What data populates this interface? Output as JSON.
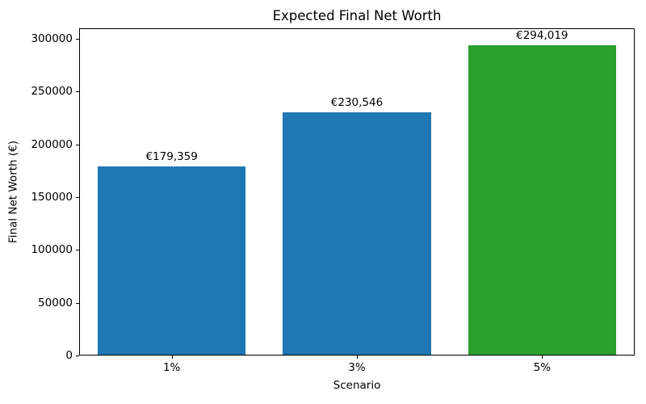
{
  "chart_data": {
    "type": "bar",
    "title": "Expected Final Net Worth",
    "xlabel": "Scenario",
    "ylabel": "Final Net Worth (€)",
    "categories": [
      "1%",
      "3%",
      "5%"
    ],
    "values": [
      179359,
      230546,
      294019
    ],
    "bar_labels": [
      "€179,359",
      "€230,546",
      "€294,019"
    ],
    "bar_colors": [
      "#1f77b4",
      "#1f77b4",
      "#2ca02c"
    ],
    "ylim": [
      0,
      310000
    ],
    "yticks": [
      0,
      50000,
      100000,
      150000,
      200000,
      250000,
      300000
    ],
    "grid": false,
    "legend_position": "none",
    "background_color": "#ffffff",
    "spine_color": "#000000"
  }
}
